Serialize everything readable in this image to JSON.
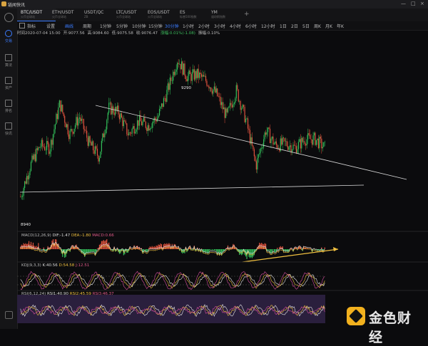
{
  "app": {
    "title": "链闻快讯",
    "window_controls": [
      "—",
      "□",
      "×"
    ]
  },
  "sidebar": {
    "items": [
      {
        "label": "交易",
        "icon": "trade-icon",
        "active": true
      },
      {
        "label": "算法",
        "icon": "algo-icon",
        "active": false
      },
      {
        "label": "资产",
        "icon": "asset-icon",
        "active": false
      },
      {
        "label": "排名",
        "icon": "rank-icon",
        "active": false
      },
      {
        "label": "快讯",
        "icon": "news-icon",
        "active": false
      }
    ]
  },
  "tabs": [
    {
      "symbol": "BTC/USDT",
      "sub": "火币全球站",
      "active": true
    },
    {
      "symbol": "ETH/USDT",
      "sub": "火币全球站",
      "active": false
    },
    {
      "symbol": "USDT/QC",
      "sub": "ZB",
      "active": false
    },
    {
      "symbol": "LTC/USDT",
      "sub": "火币全球站",
      "active": false
    },
    {
      "symbol": "EOS/USDT",
      "sub": "火币全球站",
      "active": false
    },
    {
      "symbol": "ES",
      "sub": "标普500指数",
      "active": false
    },
    {
      "symbol": "YM",
      "sub": "道琼斯指数",
      "active": false
    }
  ],
  "toolbar": {
    "tools": [
      "指标",
      "设置",
      "画线",
      "周期"
    ],
    "intervals": [
      "1分钟",
      "5分钟",
      "10分钟",
      "15分钟",
      "30分钟",
      "1小时",
      "2小时",
      "3小时",
      "4小时",
      "6小时",
      "12小时",
      "1日",
      "2日",
      "5日",
      "周K",
      "月K",
      "年K"
    ],
    "active_interval": "30分钟"
  },
  "info": {
    "time": "时间2020-07-04 15:00",
    "open": "开:9077.56",
    "high": "高:9084.60",
    "low": "低:9075.58",
    "close": "收:9076.47",
    "change": "涨幅:0.01%(-1.08)",
    "amplitude": "振幅:0.10%"
  },
  "chart_data": {
    "type": "candlestick",
    "price_labels": {
      "high": "9290",
      "low": "8940"
    },
    "y_range": [
      8900,
      9320
    ],
    "close_path": [
      8970,
      9040,
      9085,
      9080,
      9180,
      9110,
      9150,
      9090,
      9060,
      9170,
      9160,
      9110,
      9140,
      9130,
      9150,
      9210,
      9280,
      9240,
      9245,
      9230,
      9200,
      9150,
      9210,
      9140,
      9040,
      9120,
      9085,
      9090,
      9080,
      9100,
      9100,
      9080
    ],
    "trendlines": [
      "descending-resistance",
      "horizontal-support",
      "macd-divergence"
    ],
    "indicators": {
      "macd": {
        "name": "MACD(12,26,9)",
        "dif": "DIF:-1.47",
        "dea": "DEA:-1.80",
        "macd": "MACD:0.66"
      },
      "kdj": {
        "name": "KDJ(9,3,3)",
        "k": "K:40.56",
        "d": "D:54.58",
        "j": "J:12.51"
      },
      "rsi": {
        "name": "RSI(6,12,24)",
        "rsi1": "RSI1:40.90",
        "rsi2": "RSI2:45.59",
        "rsi3": "RSI3:46.37"
      }
    }
  },
  "colors": {
    "up": "#33c05a",
    "down": "#e0533e",
    "accent": "#3b7cff",
    "macd_line": "#f0c040"
  },
  "watermark": {
    "text": "金色财经"
  }
}
